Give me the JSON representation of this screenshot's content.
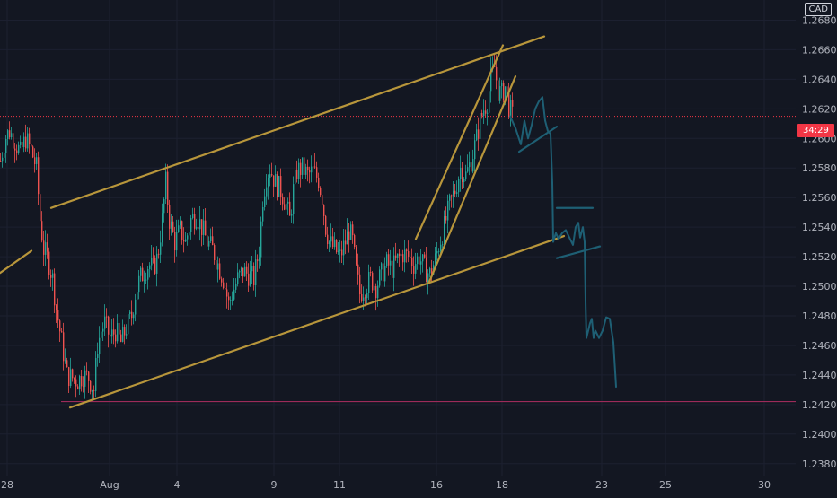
{
  "colors": {
    "background": "#131722",
    "bull": "#26a69a",
    "bear": "#ef5350",
    "trendline": "#b8963b",
    "projection": "#1e5f74",
    "support": "#9c2b5a",
    "current_price_line": "#f23645",
    "axis_text": "#b2b5be"
  },
  "axis": {
    "currency": "CAD",
    "current_price_label": "34:29"
  },
  "chart_data": {
    "type": "candlestick",
    "title": "",
    "xlabel": "",
    "ylabel": "",
    "ylim": [
      1.2375,
      1.269
    ],
    "y_ticks": [
      "1.26800",
      "1.26600",
      "1.26400",
      "1.26200",
      "1.26000",
      "1.25800",
      "1.25600",
      "1.25400",
      "1.25200",
      "1.25000",
      "1.24800",
      "1.24600",
      "1.24400",
      "1.24200",
      "1.24000",
      "1.23800"
    ],
    "x_ticks": [
      "28",
      "Aug",
      "4",
      "9",
      "11",
      "16",
      "18",
      "23",
      "25",
      "30"
    ],
    "current_price": 1.2615,
    "support_level": 1.2422,
    "price_path": [
      [
        0,
        1.2585
      ],
      [
        5,
        1.26
      ],
      [
        10,
        1.2605
      ],
      [
        16,
        1.2598
      ],
      [
        22,
        1.259
      ],
      [
        28,
        1.26
      ],
      [
        34,
        1.2592
      ],
      [
        40,
        1.258
      ],
      [
        44,
        1.2545
      ],
      [
        48,
        1.2525
      ],
      [
        53,
        1.2518
      ],
      [
        58,
        1.2505
      ],
      [
        62,
        1.2485
      ],
      [
        66,
        1.247
      ],
      [
        70,
        1.2455
      ],
      [
        74,
        1.244
      ],
      [
        80,
        1.2438
      ],
      [
        86,
        1.2436
      ],
      [
        92,
        1.244
      ],
      [
        98,
        1.2438
      ],
      [
        104,
        1.243
      ],
      [
        108,
        1.246
      ],
      [
        112,
        1.247
      ],
      [
        116,
        1.2475
      ],
      [
        122,
        1.2465
      ],
      [
        128,
        1.247
      ],
      [
        134,
        1.2462
      ],
      [
        140,
        1.2472
      ],
      [
        146,
        1.248
      ],
      [
        150,
        1.2495
      ],
      [
        155,
        1.2505
      ],
      [
        160,
        1.251
      ],
      [
        165,
        1.2515
      ],
      [
        170,
        1.2512
      ],
      [
        175,
        1.252
      ],
      [
        180,
        1.2545
      ],
      [
        184,
        1.257
      ],
      [
        188,
        1.2545
      ],
      [
        194,
        1.253
      ],
      [
        200,
        1.2538
      ],
      [
        206,
        1.253
      ],
      [
        212,
        1.2545
      ],
      [
        218,
        1.2548
      ],
      [
        224,
        1.254
      ],
      [
        230,
        1.253
      ],
      [
        236,
        1.2525
      ],
      [
        242,
        1.2515
      ],
      [
        248,
        1.2505
      ],
      [
        254,
        1.2488
      ],
      [
        258,
        1.2495
      ],
      [
        264,
        1.2505
      ],
      [
        270,
        1.251
      ],
      [
        276,
        1.2508
      ],
      [
        282,
        1.2505
      ],
      [
        288,
        1.2525
      ],
      [
        292,
        1.256
      ],
      [
        296,
        1.2575
      ],
      [
        300,
        1.258
      ],
      [
        306,
        1.257
      ],
      [
        312,
        1.2565
      ],
      [
        318,
        1.2555
      ],
      [
        322,
        1.2545
      ],
      [
        326,
        1.2565
      ],
      [
        330,
        1.2578
      ],
      [
        336,
        1.258
      ],
      [
        342,
        1.2575
      ],
      [
        348,
        1.2578
      ],
      [
        354,
        1.2572
      ],
      [
        358,
        1.256
      ],
      [
        362,
        1.254
      ],
      [
        366,
        1.253
      ],
      [
        372,
        1.2525
      ],
      [
        378,
        1.252
      ],
      [
        384,
        1.253
      ],
      [
        388,
        1.2538
      ],
      [
        392,
        1.253
      ],
      [
        396,
        1.251
      ],
      [
        400,
        1.2495
      ],
      [
        406,
        1.25
      ],
      [
        412,
        1.2505
      ],
      [
        418,
        1.25
      ],
      [
        424,
        1.2508
      ],
      [
        430,
        1.2515
      ],
      [
        436,
        1.2512
      ],
      [
        442,
        1.2518
      ],
      [
        448,
        1.2522
      ],
      [
        454,
        1.252
      ],
      [
        460,
        1.2515
      ],
      [
        466,
        1.252
      ],
      [
        472,
        1.2512
      ],
      [
        478,
        1.2508
      ],
      [
        484,
        1.2518
      ],
      [
        488,
        1.2528
      ],
      [
        494,
        1.254
      ],
      [
        500,
        1.2555
      ],
      [
        506,
        1.2565
      ],
      [
        512,
        1.258
      ],
      [
        518,
        1.2575
      ],
      [
        524,
        1.2585
      ],
      [
        530,
        1.26
      ],
      [
        534,
        1.2612
      ],
      [
        538,
        1.262
      ],
      [
        542,
        1.2625
      ],
      [
        546,
        1.264
      ],
      [
        550,
        1.2648
      ],
      [
        554,
        1.2632
      ],
      [
        558,
        1.263
      ],
      [
        562,
        1.2635
      ],
      [
        566,
        1.2622
      ],
      [
        570,
        1.2615
      ]
    ],
    "annotations": {
      "channel_upper": [
        [
          57,
          1.2553
        ],
        [
          606,
          1.2669
        ]
      ],
      "channel_lower": [
        [
          78,
          1.2418
        ],
        [
          628,
          1.2534
        ]
      ],
      "left_stub": [
        [
          0,
          1.2509
        ],
        [
          35,
          1.2524
        ]
      ],
      "wedge_upper": [
        [
          463,
          1.2532
        ],
        [
          560,
          1.2663
        ]
      ],
      "wedge_lower": [
        [
          478,
          1.2503
        ],
        [
          574,
          1.2642
        ]
      ],
      "resistance_stub_1": [
        [
          578,
          1.2591
        ],
        [
          620,
          1.2608
        ]
      ],
      "resistance_stub_2": [
        [
          620,
          1.2553
        ],
        [
          660,
          1.2553
        ]
      ],
      "resistance_stub_3": [
        [
          620,
          1.2519
        ],
        [
          668,
          1.2527
        ]
      ],
      "projection_path": [
        [
          568,
          1.2615
        ],
        [
          574,
          1.2607
        ],
        [
          580,
          1.2596
        ],
        [
          584,
          1.2612
        ],
        [
          588,
          1.26
        ],
        [
          592,
          1.2609
        ],
        [
          596,
          1.262
        ],
        [
          600,
          1.2625
        ],
        [
          604,
          1.2628
        ],
        [
          607,
          1.2612
        ],
        [
          610,
          1.2605
        ],
        [
          613,
          1.2603
        ],
        [
          615,
          1.257
        ],
        [
          616,
          1.253
        ],
        [
          619,
          1.2536
        ],
        [
          622,
          1.2532
        ],
        [
          626,
          1.2536
        ],
        [
          630,
          1.2538
        ],
        [
          634,
          1.2533
        ],
        [
          638,
          1.2528
        ],
        [
          641,
          1.254
        ],
        [
          644,
          1.2543
        ],
        [
          646,
          1.2533
        ],
        [
          649,
          1.254
        ],
        [
          651,
          1.253
        ],
        [
          652,
          1.249
        ],
        [
          653,
          1.2465
        ],
        [
          655,
          1.247
        ],
        [
          657,
          1.2475
        ],
        [
          659,
          1.2478
        ],
        [
          661,
          1.2465
        ],
        [
          663,
          1.247
        ],
        [
          667,
          1.2465
        ],
        [
          671,
          1.247
        ],
        [
          675,
          1.2479
        ],
        [
          679,
          1.2478
        ],
        [
          683,
          1.2462
        ],
        [
          686,
          1.2432
        ]
      ]
    }
  }
}
